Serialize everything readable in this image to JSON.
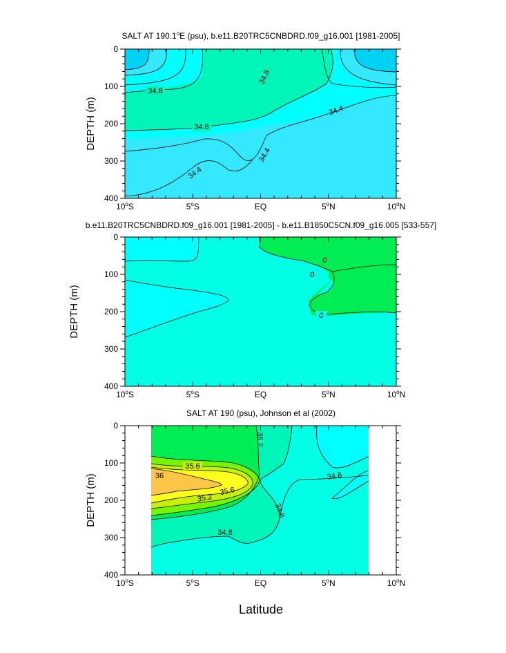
{
  "figure": {
    "xlabel": "Latitude"
  },
  "colors": {
    "band_deep_cyan": "#00d2f4",
    "band_cyan": "#34e8ff",
    "band_light_cyan": "#00ffff",
    "band_aqua": "#00ffe4",
    "band_aqua_green": "#00f5b8",
    "band_green": "#00ee54",
    "band_lime": "#77f500",
    "band_yellow_green": "#c6f000",
    "band_yellow": "#ffff1e",
    "band_orange": "#ffc546",
    "line": "#000000"
  },
  "chart_data": [
    {
      "type": "contour",
      "title_main": "SALT AT 190.1",
      "title_sup": "o",
      "title_rest": "E (psu), b.e11.B20TRC5CNBDRD.f09_g16.001 [1981-2005]",
      "xlabel": "",
      "ylabel": "DEPTH (m)",
      "xlim": [
        -10,
        10
      ],
      "ylim": [
        0,
        400
      ],
      "xticks": [
        {
          "v": -10,
          "label": "10",
          "sup": "o",
          "suffix": "S"
        },
        {
          "v": -5,
          "label": "5",
          "sup": "o",
          "suffix": "S"
        },
        {
          "v": 0,
          "label": "EQ",
          "sup": "",
          "suffix": ""
        },
        {
          "v": 5,
          "label": "5",
          "sup": "o",
          "suffix": "N"
        },
        {
          "v": 10,
          "label": "10",
          "sup": "o",
          "suffix": "N"
        }
      ],
      "yticks": [
        "0",
        "100",
        "200",
        "300",
        "400"
      ],
      "contour_labels": [
        "34.8",
        "34.8",
        "34.8",
        "34.4",
        "34.4",
        "34.4"
      ],
      "levels": [
        34.4,
        34.8
      ]
    },
    {
      "type": "contour",
      "title_main": "b.e11.B20TRC5CNBDRD.f09_g16.001 [1981-2005] - b.e11.B1850C5CN.f09_g16.005 [533-557]",
      "title_sup": "",
      "title_rest": "",
      "xlabel": "",
      "ylabel": "DEPTH (m)",
      "xlim": [
        -10,
        10
      ],
      "ylim": [
        0,
        400
      ],
      "xticks": [
        {
          "v": -10,
          "label": "10",
          "sup": "o",
          "suffix": "S"
        },
        {
          "v": -5,
          "label": "5",
          "sup": "o",
          "suffix": "S"
        },
        {
          "v": 0,
          "label": "EQ",
          "sup": "",
          "suffix": ""
        },
        {
          "v": 5,
          "label": "5",
          "sup": "o",
          "suffix": "N"
        },
        {
          "v": 10,
          "label": "10",
          "sup": "o",
          "suffix": "N"
        }
      ],
      "yticks": [
        "0",
        "100",
        "200",
        "300",
        "400"
      ],
      "contour_labels": [
        "0",
        "0",
        "0"
      ],
      "levels": [
        -0.1,
        0,
        0.1
      ]
    },
    {
      "type": "contour",
      "title_main": "SALT AT 190 (psu), Johnson et al (2002)",
      "title_sup": "",
      "title_rest": "",
      "xlabel": "Latitude",
      "ylabel": "DEPTH (m)",
      "xlim": [
        -10,
        10
      ],
      "ylim": [
        0,
        400
      ],
      "data_xrange": [
        -8,
        8
      ],
      "xticks": [
        {
          "v": -10,
          "label": "10",
          "sup": "o",
          "suffix": "S"
        },
        {
          "v": -5,
          "label": "5",
          "sup": "o",
          "suffix": "S"
        },
        {
          "v": 0,
          "label": "EQ",
          "sup": "",
          "suffix": ""
        },
        {
          "v": 5,
          "label": "5",
          "sup": "o",
          "suffix": "N"
        },
        {
          "v": 10,
          "label": "10",
          "sup": "o",
          "suffix": "N"
        }
      ],
      "yticks": [
        "0",
        "100",
        "200",
        "300",
        "400"
      ],
      "contour_labels": [
        "35.6",
        "36",
        "35.6",
        "35.2",
        "35.2",
        "34.8",
        "34.8",
        "34.8"
      ],
      "levels": [
        34.8,
        35.0,
        35.2,
        35.4,
        35.6,
        35.8,
        36.0
      ]
    }
  ]
}
